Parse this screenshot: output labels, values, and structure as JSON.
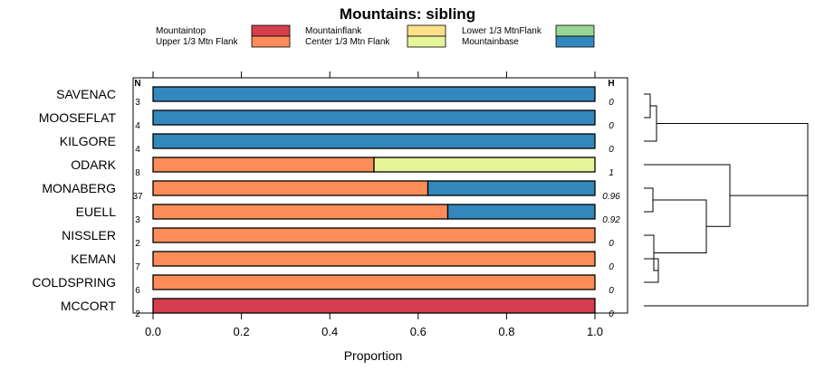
{
  "chart_data": {
    "type": "bar",
    "orientation": "horizontal",
    "stacked": true,
    "title": "Mountains: sibling",
    "xlabel": "Proportion",
    "xlim": [
      0,
      1
    ],
    "xticks": [
      "0.0",
      "0.2",
      "0.4",
      "0.6",
      "0.8",
      "1.0"
    ],
    "n_header": "N",
    "h_header": "H",
    "legend_position": "top",
    "grid": false,
    "categories": [
      "SAVENAC",
      "MOOSEFLAT",
      "KILGORE",
      "ODARK",
      "MONABERG",
      "EUELL",
      "NISSLER",
      "KEMAN",
      "COLDSPRING",
      "MCCORT"
    ],
    "n": [
      "3",
      "4",
      "4",
      "8",
      "37",
      "3",
      "2",
      "7",
      "6",
      "2"
    ],
    "h": [
      "0",
      "0",
      "0",
      "1",
      "0.96",
      "0.92",
      "0",
      "0",
      "0",
      "0"
    ],
    "series": [
      {
        "name": "Mountaintop",
        "color": "#d53e4f",
        "values": [
          0,
          0,
          0,
          0,
          0,
          0,
          0,
          0,
          0,
          1
        ]
      },
      {
        "name": "Upper 1/3 Mtn Flank",
        "color": "#fc8d59",
        "values": [
          0,
          0,
          0,
          0.5,
          0.622,
          0.667,
          1,
          1,
          1,
          0
        ]
      },
      {
        "name": "Mountainflank",
        "color": "#fee08b",
        "values": [
          0,
          0,
          0,
          0,
          0,
          0,
          0,
          0,
          0,
          0
        ]
      },
      {
        "name": "Center 1/3 Mtn Flank",
        "color": "#e6f598",
        "values": [
          0,
          0,
          0,
          0.5,
          0,
          0,
          0,
          0,
          0,
          0
        ]
      },
      {
        "name": "Lower 1/3 MtnFlank",
        "color": "#99d594",
        "values": [
          0,
          0,
          0,
          0,
          0,
          0,
          0,
          0,
          0,
          0
        ]
      },
      {
        "name": "Mountainbase",
        "color": "#3288bd",
        "values": [
          1,
          1,
          1,
          0,
          0.378,
          0.333,
          0,
          0,
          0,
          0
        ]
      }
    ]
  }
}
